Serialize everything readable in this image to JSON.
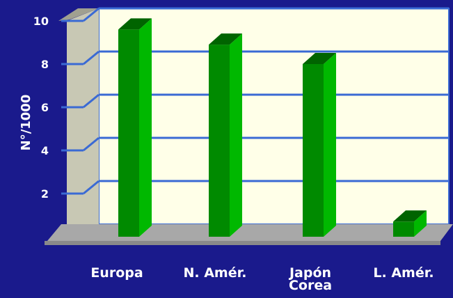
{
  "chart_data": {
    "type": "bar",
    "style": "3d",
    "categories": [
      [
        "Europa"
      ],
      [
        "N. Amér."
      ],
      [
        "Japón",
        "Corea"
      ],
      [
        "L. Amér."
      ]
    ],
    "values": [
      9.6,
      8.9,
      8.0,
      0.7
    ],
    "ylabel": "N°/1000",
    "ylim": [
      0,
      10
    ],
    "yticks": [
      "2",
      "4",
      "6",
      "8",
      "10"
    ],
    "grid": true,
    "colors": {
      "background": "#1a1a8c",
      "plot_back": "#ffffe8",
      "wall_side": "#c8c8b4",
      "floor": "#a8a8a8",
      "gridline": "#3a6ad4",
      "bar_front": "#008a00",
      "bar_side": "#00b800",
      "bar_top": "#006400"
    }
  }
}
